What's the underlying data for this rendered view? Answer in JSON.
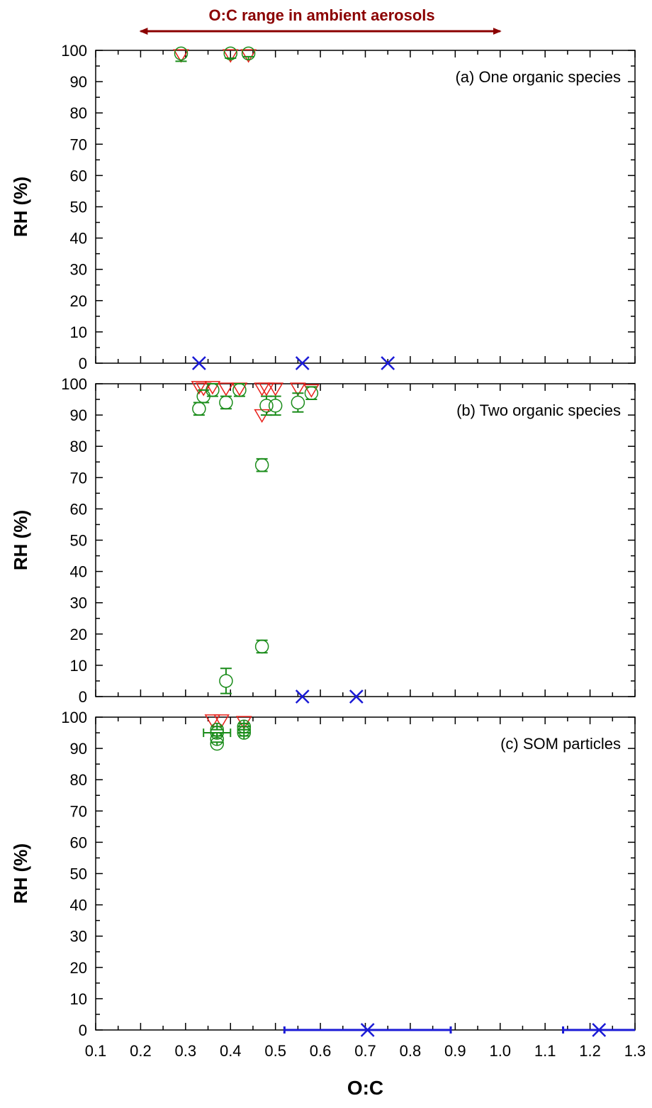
{
  "figure": {
    "range_annotation": {
      "text": "O:C range in ambient aerosols",
      "from": 0.2,
      "to": 1.0,
      "color": "#8b0000"
    },
    "x_axis_label": "O:C",
    "y_axis_label": "RH (%)"
  },
  "colors": {
    "red_triangle": "#e8201a",
    "green_circle": "#1a8c1a",
    "blue_cross": "#1a1ad6",
    "axis": "#000000"
  },
  "chart_data": [
    {
      "type": "scatter",
      "panel_label": "(a) One organic species",
      "xlim": [
        0.1,
        1.3
      ],
      "ylim": [
        0,
        100
      ],
      "xlabel": "",
      "ylabel": "RH (%)",
      "grid": false,
      "y_ticks": [
        0,
        10,
        20,
        30,
        40,
        50,
        60,
        70,
        80,
        90,
        100
      ],
      "series": [
        {
          "marker": "triangle-down",
          "color": "red",
          "points": [
            {
              "x": 0.29,
              "y": 98.5
            },
            {
              "x": 0.4,
              "y": 98.5
            },
            {
              "x": 0.44,
              "y": 98.5
            }
          ]
        },
        {
          "marker": "circle",
          "color": "green",
          "points": [
            {
              "x": 0.29,
              "y": 99,
              "err_low": 2.5,
              "err_high": 0
            },
            {
              "x": 0.4,
              "y": 99,
              "err_low": 1.5,
              "err_high": 0
            },
            {
              "x": 0.44,
              "y": 99,
              "err_low": 1.0,
              "err_high": 0
            }
          ]
        },
        {
          "marker": "cross",
          "color": "blue",
          "points": [
            {
              "x": 0.33,
              "y": 0
            },
            {
              "x": 0.56,
              "y": 0
            },
            {
              "x": 0.75,
              "y": 0
            }
          ]
        }
      ]
    },
    {
      "type": "scatter",
      "panel_label": "(b) Two organic species",
      "xlim": [
        0.1,
        1.3
      ],
      "ylim": [
        0,
        100
      ],
      "xlabel": "",
      "ylabel": "RH (%)",
      "grid": false,
      "y_ticks": [
        0,
        10,
        20,
        30,
        40,
        50,
        60,
        70,
        80,
        90,
        100
      ],
      "series": [
        {
          "marker": "triangle-down",
          "color": "red",
          "points": [
            {
              "x": 0.33,
              "y": 99
            },
            {
              "x": 0.34,
              "y": 98.5
            },
            {
              "x": 0.36,
              "y": 99
            },
            {
              "x": 0.39,
              "y": 98.5
            },
            {
              "x": 0.42,
              "y": 98.5
            },
            {
              "x": 0.47,
              "y": 90
            },
            {
              "x": 0.47,
              "y": 98.5
            },
            {
              "x": 0.48,
              "y": 98.5
            },
            {
              "x": 0.5,
              "y": 98.5
            },
            {
              "x": 0.55,
              "y": 98.5
            },
            {
              "x": 0.58,
              "y": 98
            }
          ]
        },
        {
          "marker": "circle",
          "color": "green",
          "points": [
            {
              "x": 0.33,
              "y": 92,
              "err_low": 2.0,
              "err_high": 2.0
            },
            {
              "x": 0.34,
              "y": 96,
              "err_low": 2.0,
              "err_high": 2.0
            },
            {
              "x": 0.36,
              "y": 98,
              "err_low": 2.0,
              "err_high": 2.0
            },
            {
              "x": 0.39,
              "y": 94,
              "err_low": 2.0,
              "err_high": 2.0
            },
            {
              "x": 0.42,
              "y": 98,
              "err_low": 2.0,
              "err_high": 2.0
            },
            {
              "x": 0.47,
              "y": 74,
              "err_low": 2.0,
              "err_high": 2.0
            },
            {
              "x": 0.48,
              "y": 93,
              "err_low": 3.0,
              "err_high": 3.0
            },
            {
              "x": 0.5,
              "y": 93,
              "err_low": 3.0,
              "err_high": 3.0
            },
            {
              "x": 0.55,
              "y": 94,
              "err_low": 3.0,
              "err_high": 3.0
            },
            {
              "x": 0.58,
              "y": 97,
              "err_low": 2.0,
              "err_high": 2.0
            },
            {
              "x": 0.47,
              "y": 16,
              "err_low": 2.0,
              "err_high": 2.0
            },
            {
              "x": 0.39,
              "y": 5,
              "err_low": 4.0,
              "err_high": 4.0
            }
          ]
        },
        {
          "marker": "cross",
          "color": "blue",
          "points": [
            {
              "x": 0.56,
              "y": 0
            },
            {
              "x": 0.68,
              "y": 0
            }
          ]
        }
      ]
    },
    {
      "type": "scatter",
      "panel_label": "(c) SOM particles",
      "xlim": [
        0.1,
        1.3
      ],
      "ylim": [
        0,
        100
      ],
      "xlabel": "O:C",
      "ylabel": "RH (%)",
      "grid": false,
      "y_ticks": [
        0,
        10,
        20,
        30,
        40,
        50,
        60,
        70,
        80,
        90,
        100
      ],
      "x_ticks": [
        "0.1",
        "0.2",
        "0.3",
        "0.4",
        "0.5",
        "0.6",
        "0.7",
        "0.8",
        "0.9",
        "1.0",
        "1.1",
        "1.2",
        "1.3"
      ],
      "series": [
        {
          "marker": "triangle-down",
          "color": "red",
          "points": [
            {
              "x": 0.36,
              "y": 99
            },
            {
              "x": 0.38,
              "y": 99
            },
            {
              "x": 0.43,
              "y": 98.5
            }
          ]
        },
        {
          "marker": "circle",
          "color": "green",
          "points": [
            {
              "x": 0.37,
              "y": 95,
              "err_low": 1.0,
              "err_high": 1.0,
              "xerr": 0.03
            },
            {
              "x": 0.37,
              "y": 93,
              "err_low": 1.0,
              "err_high": 1.0
            },
            {
              "x": 0.37,
              "y": 91.5,
              "err_low": 0,
              "err_high": 0
            },
            {
              "x": 0.37,
              "y": 96,
              "err_low": 1.0,
              "err_high": 1.0
            },
            {
              "x": 0.43,
              "y": 95,
              "err_low": 1.0,
              "err_high": 1.0
            },
            {
              "x": 0.43,
              "y": 96,
              "err_low": 1.0,
              "err_high": 1.0
            },
            {
              "x": 0.43,
              "y": 97,
              "err_low": 1.0,
              "err_high": 1.0
            }
          ]
        },
        {
          "marker": "cross",
          "color": "blue",
          "points": [
            {
              "x": 0.705,
              "y": 0,
              "xerr_low": 0.185,
              "xerr_high": 0.185
            },
            {
              "x": 1.22,
              "y": 0,
              "xerr_low": 0.08,
              "xerr_high": 0.08
            }
          ]
        }
      ]
    }
  ]
}
